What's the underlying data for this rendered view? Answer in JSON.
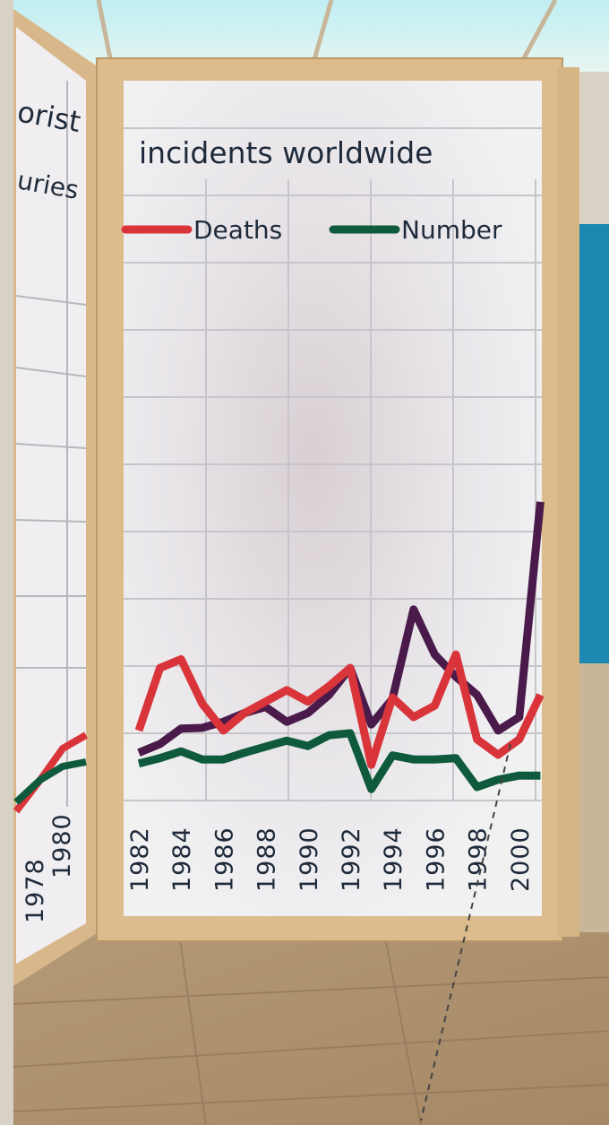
{
  "chart_data": {
    "type": "line",
    "title": "incidents worldwide",
    "categories": [
      "1982",
      null,
      "1984",
      null,
      "1986",
      null,
      "1988",
      null,
      "1990",
      null,
      "1992",
      null,
      "1994",
      null,
      "1996",
      null,
      "1998",
      null,
      "2000",
      null
    ],
    "series": [
      {
        "name": "Deaths",
        "color": "#d9343a",
        "values": [
          1.04,
          1.97,
          2.1,
          1.44,
          1.04,
          1.3,
          1.47,
          1.64,
          1.47,
          1.7,
          1.97,
          0.53,
          1.53,
          1.24,
          1.41,
          2.17,
          0.91,
          0.68,
          0.91,
          1.57
        ]
      },
      {
        "name": "Number",
        "color": "#0f5a3c",
        "values": [
          0.55,
          0.63,
          0.73,
          0.61,
          0.61,
          0.71,
          0.8,
          0.89,
          0.81,
          0.97,
          1.0,
          0.17,
          0.67,
          0.61,
          0.61,
          0.63,
          0.2,
          0.31,
          0.37,
          0.37
        ]
      },
      {
        "color": "#4a1a4a",
        "values": [
          0.71,
          0.84,
          1.07,
          1.08,
          1.17,
          1.3,
          1.39,
          1.17,
          1.3,
          1.57,
          1.97,
          1.13,
          1.51,
          2.84,
          2.17,
          1.84,
          1.57,
          1.04,
          1.24,
          4.44
        ]
      }
    ],
    "ylim": [
      0,
      10.7
    ],
    "grid": true
  },
  "left_panel": {
    "title": "orist",
    "subtitle": "uries",
    "years": [
      "1978",
      "1980"
    ]
  }
}
